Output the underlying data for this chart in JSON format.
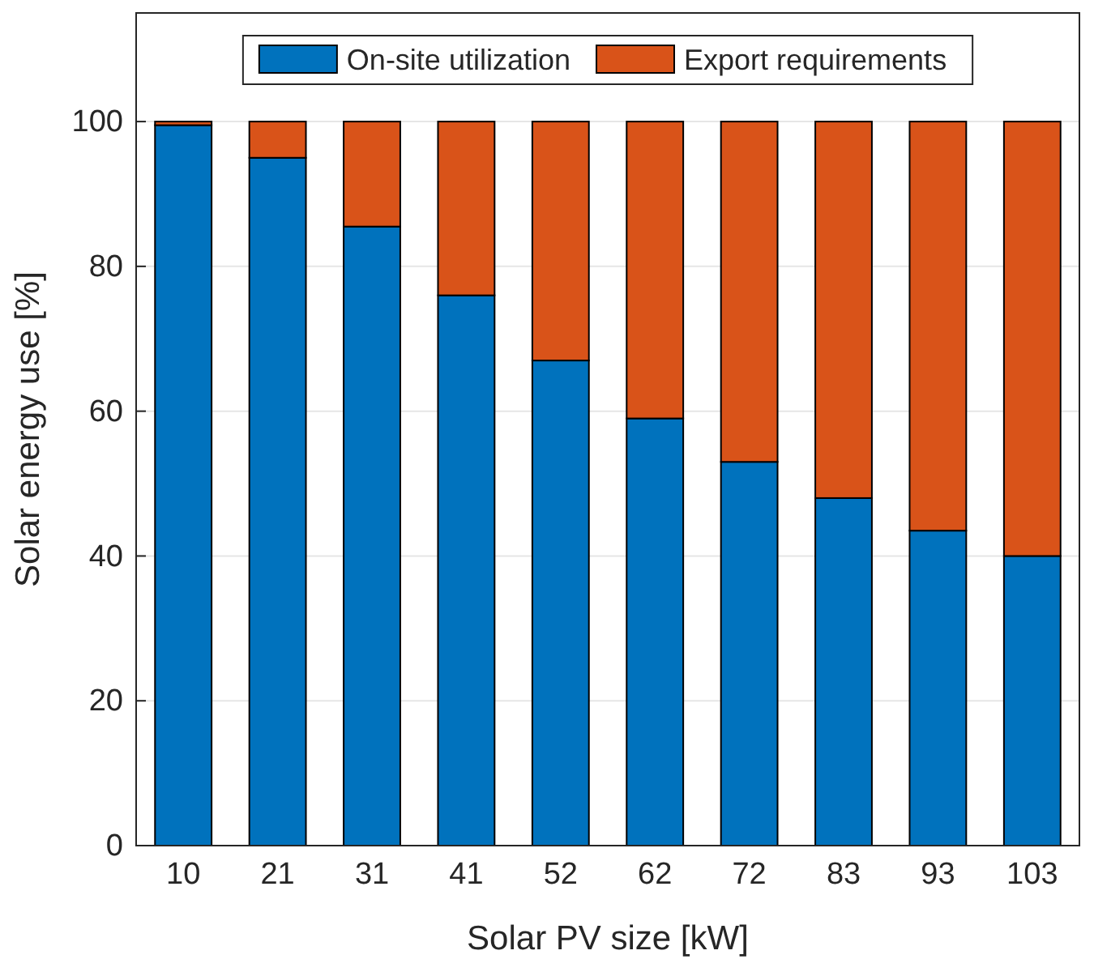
{
  "chart_data": {
    "type": "bar",
    "xlabel": "Solar PV size [kW]",
    "ylabel": "Solar energy use [%]",
    "categories": [
      "10",
      "21",
      "31",
      "41",
      "52",
      "62",
      "72",
      "83",
      "93",
      "103"
    ],
    "stacked": true,
    "series": [
      {
        "name": "On-site utilization",
        "color": "#0072bd",
        "values": [
          99.5,
          95,
          85.5,
          76,
          67,
          59,
          53,
          48,
          43.5,
          40
        ]
      },
      {
        "name": "Export requirements",
        "color": "#d95319",
        "values": [
          0.5,
          5,
          14.5,
          24,
          33,
          41,
          47,
          52,
          56.5,
          60
        ]
      }
    ],
    "ylim": [
      0,
      115
    ],
    "yticks": [
      0,
      20,
      40,
      60,
      80,
      100
    ],
    "grid": "y",
    "legend": "top"
  }
}
